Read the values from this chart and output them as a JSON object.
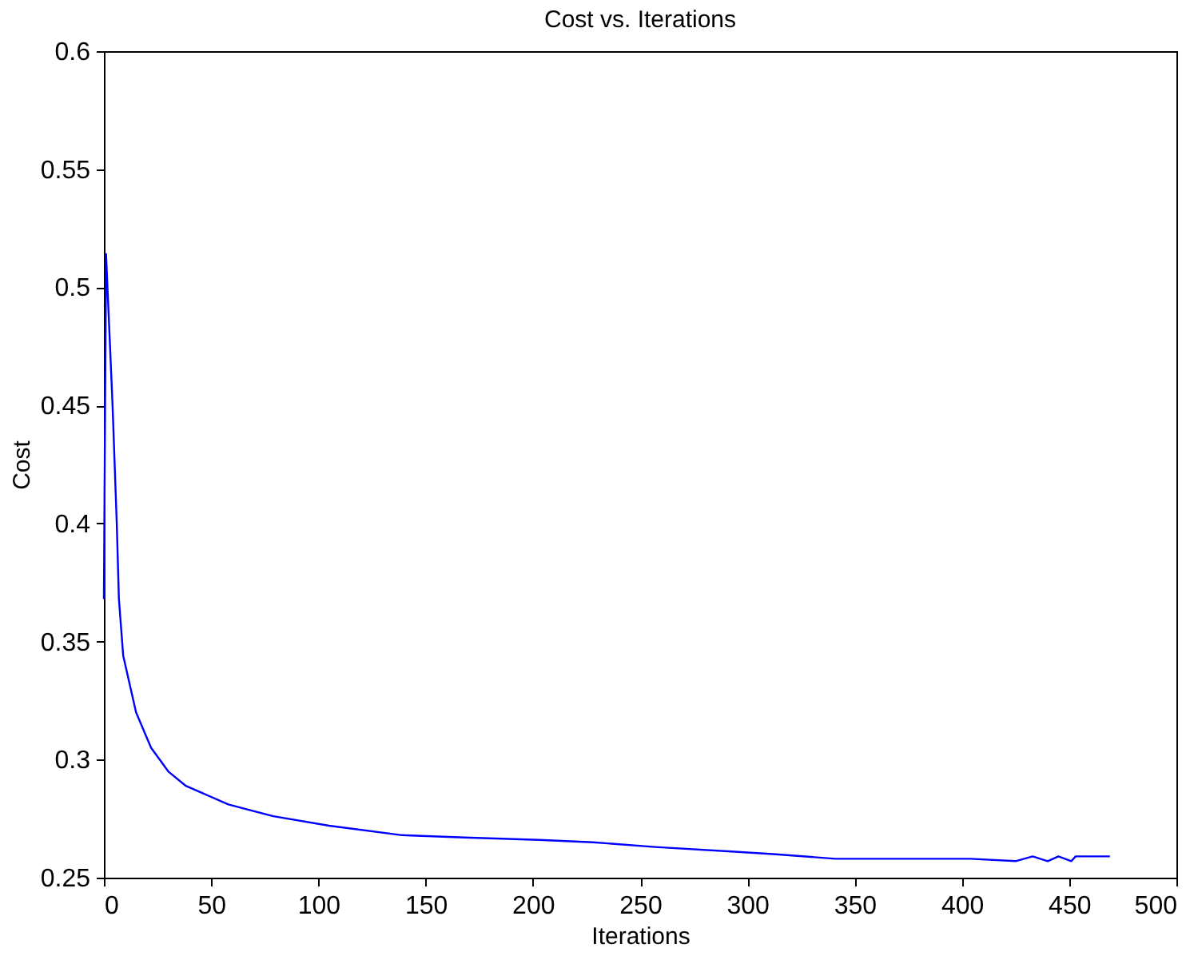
{
  "chart_data": {
    "type": "line",
    "title": "Cost vs. Iterations",
    "xlabel": "Iterations",
    "ylabel": "Cost",
    "x": [
      0,
      1,
      4,
      6,
      7,
      9,
      15,
      22,
      30,
      38,
      58,
      79,
      105,
      139,
      168,
      203,
      228,
      257,
      294,
      312,
      341,
      404,
      425,
      433,
      440,
      445,
      451,
      453,
      469
    ],
    "series": [
      {
        "color": "#0000ff",
        "values": [
          0.368,
          0.514,
          0.451,
          0.4,
          0.368,
          0.344,
          0.32,
          0.305,
          0.295,
          0.289,
          0.281,
          0.276,
          0.272,
          0.268,
          0.267,
          0.266,
          0.265,
          0.263,
          0.261,
          0.26,
          0.258,
          0.258,
          0.257,
          0.259,
          0.257,
          0.259,
          0.257,
          0.259,
          0.259
        ]
      }
    ],
    "xlim": [
      0,
      500
    ],
    "xticks": [
      0,
      50,
      100,
      150,
      200,
      250,
      300,
      350,
      400,
      450,
      500
    ],
    "ylim": [
      0.25,
      0.6
    ],
    "yticks": [
      0.25,
      0.3,
      0.35,
      0.4,
      0.45,
      0.5,
      0.55,
      0.6
    ],
    "grid": false,
    "marker": "none",
    "line_style": "solid"
  }
}
